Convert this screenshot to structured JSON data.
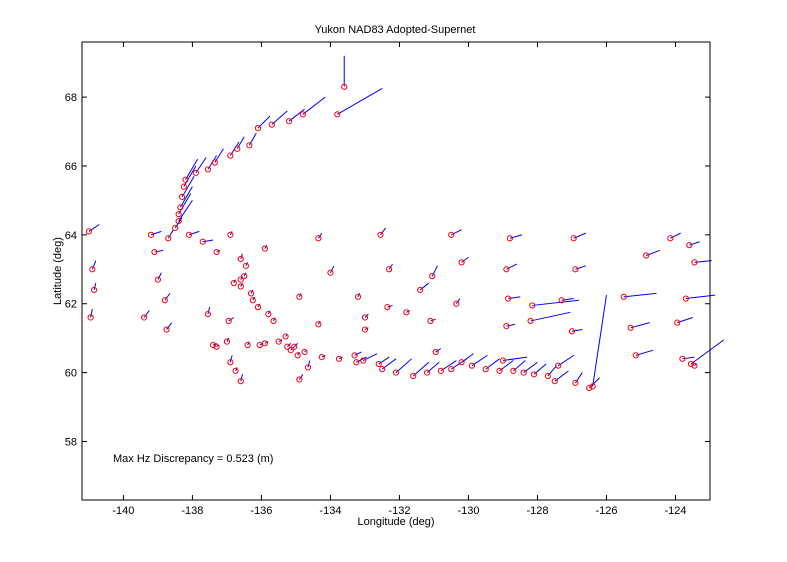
{
  "chart_data": {
    "type": "scatter",
    "title": "Yukon NAD83 Adopted-Supernet",
    "xlabel": "Longitude (deg)",
    "ylabel": "Latitude (deg)",
    "xlim": [
      -141.2,
      -123
    ],
    "ylim": [
      56.3,
      69.6
    ],
    "xticks": [
      -140,
      -138,
      -136,
      -134,
      -132,
      -130,
      -128,
      -126,
      -124
    ],
    "yticks": [
      58,
      60,
      62,
      64,
      66,
      68
    ],
    "annotation": "Max Hz Discrepancy = 0.523 (m)",
    "grid": false,
    "marker_color": "#ff0000",
    "vector_color": "#0000ff",
    "stations": [
      [
        -141.0,
        64.1,
        0.3,
        0.2
      ],
      [
        -140.9,
        63.0,
        0.1,
        0.25
      ],
      [
        -140.85,
        62.4,
        0.05,
        0.2
      ],
      [
        -140.95,
        61.6,
        0.05,
        0.25
      ],
      [
        -139.4,
        61.6,
        0.15,
        0.2
      ],
      [
        -139.2,
        64.0,
        0.3,
        0.1
      ],
      [
        -139.1,
        63.5,
        0.25,
        0.05
      ],
      [
        -139.0,
        62.7,
        0.1,
        0.2
      ],
      [
        -138.8,
        62.1,
        0.15,
        0.2
      ],
      [
        -138.75,
        61.25,
        0.15,
        0.2
      ],
      [
        -138.7,
        63.9,
        0.15,
        0.25
      ],
      [
        -138.5,
        64.2,
        0.2,
        0.3
      ],
      [
        -138.4,
        64.4,
        0.4,
        0.6
      ],
      [
        -138.4,
        64.6,
        0.35,
        0.6
      ],
      [
        -138.35,
        64.8,
        0.35,
        0.6
      ],
      [
        -138.3,
        65.1,
        0.35,
        0.6
      ],
      [
        -138.25,
        65.4,
        0.35,
        0.6
      ],
      [
        -138.2,
        65.6,
        0.35,
        0.6
      ],
      [
        -138.1,
        64.0,
        0.3,
        0.1
      ],
      [
        -137.9,
        65.8,
        0.3,
        0.45
      ],
      [
        -137.7,
        63.8,
        0.3,
        0.05
      ],
      [
        -137.55,
        65.9,
        0.25,
        0.4
      ],
      [
        -137.35,
        66.1,
        0.25,
        0.4
      ],
      [
        -136.9,
        66.3,
        0.25,
        0.4
      ],
      [
        -136.7,
        66.5,
        0.2,
        0.35
      ],
      [
        -136.35,
        66.6,
        0.2,
        0.35
      ],
      [
        -136.1,
        67.1,
        0.35,
        0.35
      ],
      [
        -135.7,
        67.2,
        0.45,
        0.4
      ],
      [
        -135.2,
        67.3,
        0.45,
        0.35
      ],
      [
        -134.8,
        67.5,
        0.65,
        0.5
      ],
      [
        -133.6,
        68.3,
        0.0,
        0.9
      ],
      [
        -133.8,
        67.5,
        1.3,
        0.75
      ],
      [
        -137.55,
        61.7,
        0.05,
        0.2
      ],
      [
        -137.4,
        60.8,
        0.1,
        0.05
      ],
      [
        -137.3,
        60.75,
        0.05,
        0.05
      ],
      [
        -137.0,
        60.9,
        0.05,
        0.1
      ],
      [
        -136.95,
        61.5,
        0.15,
        0.1
      ],
      [
        -136.9,
        60.3,
        0.05,
        0.2
      ],
      [
        -136.75,
        60.05,
        0.05,
        0.1
      ],
      [
        -136.6,
        59.75,
        0.05,
        0.2
      ],
      [
        -136.4,
        60.8,
        0.05,
        0.1
      ],
      [
        -136.05,
        60.8,
        0.1,
        0.05
      ],
      [
        -135.9,
        60.85,
        0.1,
        0.05
      ],
      [
        -135.5,
        60.9,
        0.1,
        0.05
      ],
      [
        -135.3,
        61.05,
        0.05,
        0.05
      ],
      [
        -135.25,
        60.75,
        0.1,
        0.1
      ],
      [
        -135.15,
        60.65,
        0.1,
        0.1
      ],
      [
        -135.05,
        60.75,
        0.1,
        0.1
      ],
      [
        -134.95,
        60.5,
        0.05,
        0.1
      ],
      [
        -134.9,
        59.8,
        0.1,
        0.15
      ],
      [
        -134.75,
        60.6,
        0.05,
        0.05
      ],
      [
        -134.65,
        60.15,
        0.05,
        0.2
      ],
      [
        -134.25,
        60.45,
        0.1,
        0.05
      ],
      [
        -133.75,
        60.4,
        0.1,
        0.05
      ],
      [
        -133.3,
        60.5,
        0.2,
        0.1
      ],
      [
        -133.25,
        60.3,
        0.3,
        0.15
      ],
      [
        -133.05,
        60.35,
        0.4,
        0.2
      ],
      [
        -132.6,
        60.25,
        0.3,
        0.2
      ],
      [
        -132.5,
        60.1,
        0.4,
        0.3
      ],
      [
        -132.1,
        60.0,
        0.45,
        0.4
      ],
      [
        -131.6,
        59.9,
        0.45,
        0.4
      ],
      [
        -131.2,
        60.0,
        0.35,
        0.3
      ],
      [
        -130.8,
        60.05,
        0.45,
        0.3
      ],
      [
        -130.5,
        60.1,
        0.45,
        0.3
      ],
      [
        -130.2,
        60.3,
        0.35,
        0.25
      ],
      [
        -129.9,
        60.2,
        0.45,
        0.3
      ],
      [
        -129.5,
        60.1,
        0.4,
        0.3
      ],
      [
        -129.1,
        60.05,
        0.4,
        0.3
      ],
      [
        -128.7,
        60.05,
        0.35,
        0.3
      ],
      [
        -128.4,
        60.0,
        0.4,
        0.3
      ],
      [
        -128.1,
        59.95,
        0.35,
        0.3
      ],
      [
        -129.0,
        60.35,
        0.7,
        0.1
      ],
      [
        -127.7,
        59.9,
        0.25,
        0.3
      ],
      [
        -127.4,
        60.2,
        0.45,
        0.3
      ],
      [
        -127.5,
        59.75,
        0.4,
        0.3
      ],
      [
        -126.9,
        59.7,
        0.2,
        0.3
      ],
      [
        -126.4,
        59.6,
        0.4,
        2.65
      ],
      [
        -126.5,
        59.55,
        0.3,
        0.3
      ],
      [
        -136.9,
        64.0,
        0.05,
        0.1
      ],
      [
        -137.3,
        63.5,
        0.1,
        0.05
      ],
      [
        -136.6,
        63.3,
        0.05,
        0.15
      ],
      [
        -136.45,
        63.1,
        0.05,
        0.1
      ],
      [
        -136.5,
        62.8,
        0.05,
        0.1
      ],
      [
        -136.6,
        62.7,
        0.05,
        0.1
      ],
      [
        -136.8,
        62.6,
        0.05,
        0.1
      ],
      [
        -136.6,
        62.5,
        0.05,
        0.1
      ],
      [
        -136.3,
        62.3,
        0.05,
        0.1
      ],
      [
        -136.25,
        62.1,
        0.05,
        0.1
      ],
      [
        -136.1,
        61.9,
        0.05,
        0.1
      ],
      [
        -135.8,
        61.7,
        0.05,
        0.1
      ],
      [
        -135.65,
        61.5,
        0.05,
        0.1
      ],
      [
        -135.9,
        63.6,
        0.05,
        0.1
      ],
      [
        -134.35,
        63.9,
        0.1,
        0.15
      ],
      [
        -134.9,
        62.2,
        0.05,
        0.1
      ],
      [
        -134.35,
        61.4,
        0.05,
        0.1
      ],
      [
        -134.0,
        62.9,
        0.1,
        0.2
      ],
      [
        -133.2,
        62.2,
        0.05,
        0.1
      ],
      [
        -133.0,
        61.6,
        0.1,
        0.1
      ],
      [
        -133.0,
        61.25,
        0.1,
        0.05
      ],
      [
        -132.55,
        64.0,
        0.15,
        0.2
      ],
      [
        -132.3,
        63.0,
        0.1,
        0.15
      ],
      [
        -132.35,
        61.9,
        0.15,
        0.05
      ],
      [
        -131.8,
        61.75,
        0.1,
        0.05
      ],
      [
        -131.4,
        62.4,
        0.25,
        0.2
      ],
      [
        -131.05,
        62.8,
        0.15,
        0.3
      ],
      [
        -131.1,
        61.5,
        0.15,
        0.05
      ],
      [
        -130.95,
        60.6,
        0.15,
        0.1
      ],
      [
        -130.5,
        64.0,
        0.3,
        0.15
      ],
      [
        -130.2,
        63.2,
        0.2,
        0.15
      ],
      [
        -130.35,
        62.0,
        0.1,
        0.15
      ],
      [
        -128.8,
        63.9,
        0.35,
        0.1
      ],
      [
        -128.9,
        63.0,
        0.3,
        0.15
      ],
      [
        -128.85,
        62.15,
        0.35,
        0.05
      ],
      [
        -128.9,
        61.35,
        0.25,
        0.05
      ],
      [
        -128.15,
        61.95,
        1.35,
        0.15
      ],
      [
        -128.2,
        61.5,
        1.15,
        0.25
      ],
      [
        -127.3,
        62.1,
        0.35,
        0.05
      ],
      [
        -127.0,
        61.2,
        0.3,
        0.05
      ],
      [
        -126.95,
        63.9,
        0.35,
        0.15
      ],
      [
        -126.9,
        63.0,
        0.3,
        0.1
      ],
      [
        -125.5,
        62.2,
        0.95,
        0.1
      ],
      [
        -125.3,
        61.3,
        0.55,
        0.15
      ],
      [
        -125.15,
        60.5,
        0.5,
        0.15
      ],
      [
        -124.85,
        63.4,
        0.4,
        0.15
      ],
      [
        -124.15,
        63.9,
        0.3,
        0.15
      ],
      [
        -123.95,
        61.45,
        0.45,
        0.15
      ],
      [
        -123.8,
        60.4,
        0.35,
        0.05
      ],
      [
        -123.7,
        62.15,
        0.85,
        0.1
      ],
      [
        -123.6,
        63.7,
        0.3,
        0.1
      ],
      [
        -123.45,
        63.2,
        0.5,
        0.05
      ],
      [
        -123.55,
        60.25,
        0.95,
        0.7
      ],
      [
        -123.45,
        60.2,
        0.05,
        0.05
      ]
    ]
  }
}
